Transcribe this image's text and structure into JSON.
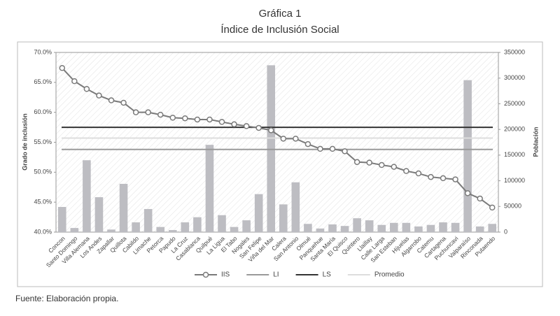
{
  "chart_data": {
    "type": "combo",
    "title": "Gráfica 1",
    "subtitle": "Índice de Inclusión Social",
    "y_label": "Grado de inclusión",
    "y2_label": "Población",
    "source": "Fuente: Elaboración propia.",
    "categories": [
      "Concon",
      "Santo Domingo",
      "Villa Alemana",
      "Los Andes",
      "Zapallar",
      "Quillota",
      "Cabildo",
      "Limache",
      "Petorca",
      "Papudo",
      "La Cruz",
      "Casablanca",
      "Quilpué",
      "La Ligua",
      "El Tabo",
      "Nogales",
      "San Felipe",
      "Viña del Mar",
      "Calera",
      "San Antonio",
      "Olmué",
      "Panquehue",
      "Santa María",
      "El Quisco",
      "Quintero",
      "Llaillay",
      "Calle Larga",
      "San Esteban",
      "Hijuelas",
      "Algarrobo",
      "Catemu",
      "Cartagena",
      "Puchuncavi",
      "Valparaíso",
      "Rinconada",
      "Putaendo"
    ],
    "bars": {
      "axis": "y2",
      "color": "#bdbdc2",
      "values": [
        49000,
        8000,
        140000,
        68000,
        5000,
        94000,
        19000,
        45000,
        10000,
        4000,
        19000,
        29000,
        170000,
        33000,
        10000,
        23000,
        74000,
        325000,
        54000,
        97000,
        16000,
        7000,
        15000,
        12000,
        27000,
        23000,
        14000,
        18000,
        18000,
        11000,
        14000,
        19000,
        18000,
        296000,
        11000,
        16000
      ]
    },
    "series": [
      {
        "name": "IIS",
        "color": "#7a7a7a",
        "values": [
          67.4,
          65.2,
          63.9,
          62.8,
          62.0,
          61.6,
          60.0,
          60.0,
          59.6,
          59.1,
          59.0,
          58.8,
          58.8,
          58.4,
          58.0,
          57.7,
          57.4,
          57.0,
          55.6,
          55.6,
          54.7,
          53.9,
          53.9,
          53.5,
          51.7,
          51.6,
          51.2,
          50.9,
          50.2,
          49.8,
          49.2,
          49.0,
          48.8,
          46.5,
          45.6,
          44.1
        ]
      }
    ],
    "reference_lines": [
      {
        "name": "LI",
        "value": 53.8,
        "color": "#9a9a9a"
      },
      {
        "name": "LS",
        "value": 57.5,
        "color": "#333333"
      },
      {
        "name": "Promedio",
        "value": 55.7,
        "color": "#dddddd"
      }
    ],
    "ylim": [
      40,
      70
    ],
    "yticks": [
      {
        "value": 40,
        "label": "40.0%"
      },
      {
        "value": 45,
        "label": "45.0%"
      },
      {
        "value": 50,
        "label": "50.0%"
      },
      {
        "value": 55,
        "label": "55.0%"
      },
      {
        "value": 60,
        "label": "60.0%"
      },
      {
        "value": 65,
        "label": "65.0%"
      },
      {
        "value": 70,
        "label": "70.0%"
      }
    ],
    "y2lim": [
      0,
      350000
    ],
    "y2ticks": [
      0,
      50000,
      100000,
      150000,
      200000,
      250000,
      300000,
      350000
    ]
  }
}
